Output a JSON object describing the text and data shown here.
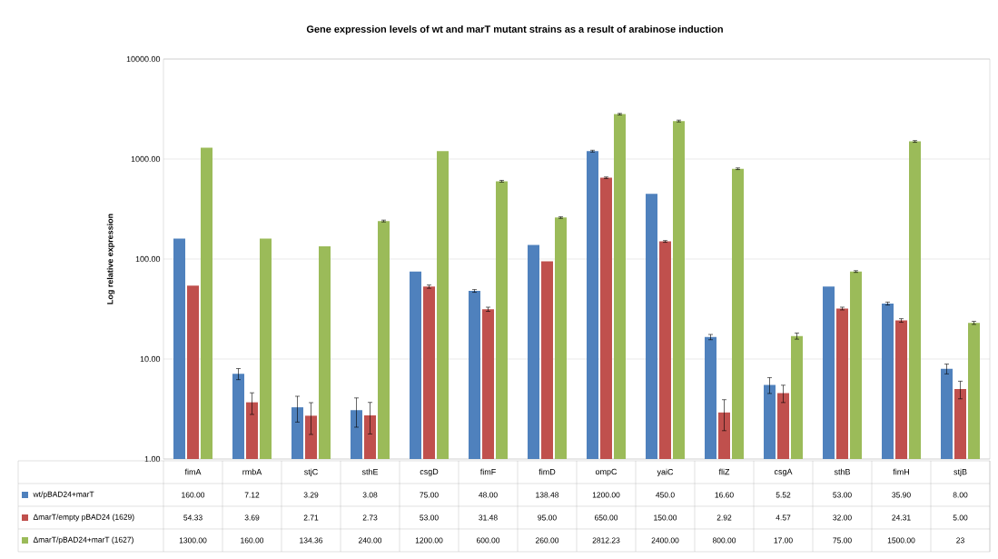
{
  "chart_data": {
    "type": "bar",
    "title": "Gene expression levels of wt and marT mutant strains as a result of arabinose induction",
    "ylabel": "Log relative expression",
    "categories": [
      "fimA",
      "rmbA",
      "stjC",
      "sthE",
      "csgD",
      "fimF",
      "fimD",
      "ompC",
      "yaiC",
      "fliZ",
      "csgA",
      "sthB",
      "fimH",
      "stjB"
    ],
    "series": [
      {
        "name": "wt/pBAD24+marT",
        "color": "#4f81bd",
        "values": [
          160,
          7.12,
          3.29,
          3.08,
          75,
          48,
          138.48,
          1200,
          450,
          16.6,
          5.52,
          53,
          35.9,
          8
        ],
        "errors": [
          null,
          0.9,
          0.95,
          1,
          null,
          1.5,
          null,
          25,
          null,
          1,
          1,
          null,
          1.2,
          0.9
        ],
        "value_labels": [
          "160.00",
          "7.12",
          "3.29",
          "3.08",
          "75.00",
          "48.00",
          "138.48",
          "1200.00",
          "450.0",
          "16.60",
          "5.52",
          "53.00",
          "35.90",
          "8.00"
        ]
      },
      {
        "name": "ΔmarT/empty pBAD24 (1629)",
        "color": "#c0504d",
        "values": [
          54.33,
          3.69,
          2.71,
          2.73,
          53,
          31.48,
          95,
          650,
          150,
          2.92,
          4.57,
          32,
          24.31,
          5
        ],
        "errors": [
          null,
          0.9,
          0.95,
          0.95,
          2,
          1.5,
          null,
          12,
          3,
          1,
          0.9,
          1,
          1,
          1
        ],
        "value_labels": [
          "54.33",
          "3.69",
          "2.71",
          "2.73",
          "53.00",
          "31.48",
          "95.00",
          "650.00",
          "150.00",
          "2.92",
          "4.57",
          "32.00",
          "24.31",
          "5.00"
        ]
      },
      {
        "name": "ΔmarT/pBAD24+marT (1627)",
        "color": "#9bbb59",
        "values": [
          1300,
          160,
          134.36,
          240,
          1200,
          600,
          260,
          2812.23,
          2400,
          800,
          17,
          75,
          1500,
          23
        ],
        "errors": [
          null,
          null,
          null,
          5,
          null,
          12,
          5,
          50,
          50,
          15,
          1.2,
          1.5,
          30,
          0.8
        ],
        "value_labels": [
          "1300.00",
          "160.00",
          "134.36",
          "240.00",
          "1200.00",
          "600.00",
          "260.00",
          "2812.23",
          "2400.00",
          "800.00",
          "17.00",
          "75.00",
          "1500.00",
          "23"
        ]
      }
    ],
    "log": true,
    "ylim": [
      1,
      10000
    ],
    "yticks": [
      {
        "value": 1,
        "label": "1.00"
      },
      {
        "value": 10,
        "label": "10.00"
      },
      {
        "value": 100,
        "label": "100.00"
      },
      {
        "value": 1000,
        "label": "1000.00"
      },
      {
        "value": 10000,
        "label": "10000.00"
      }
    ],
    "grid": true,
    "legend": "bottom",
    "data_labels": true
  }
}
